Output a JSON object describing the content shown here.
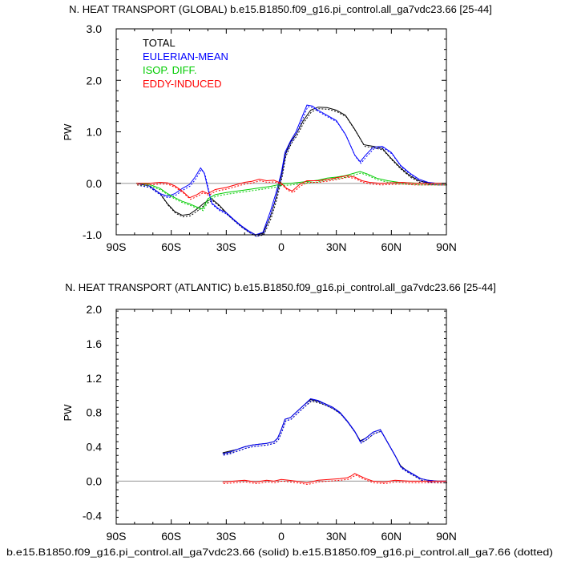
{
  "chart_data": [
    {
      "type": "line",
      "title": "N. HEAT TRANSPORT (GLOBAL) b.e15.B1850.f09_g16.pi_control.all_ga7vdc23.66 [25-44]",
      "ylabel": "PW",
      "xlabel": "",
      "xlim": [
        -90,
        90
      ],
      "ylim": [
        -1.0,
        3.0
      ],
      "xticks": [
        -90,
        -60,
        -30,
        0,
        30,
        60,
        90
      ],
      "xtick_labels": [
        "90S",
        "60S",
        "30S",
        "0",
        "30N",
        "60N",
        "90N"
      ],
      "yticks": [
        -1.0,
        0.0,
        1.0,
        2.0,
        3.0
      ],
      "ytick_labels": [
        "-1.0",
        "0.0",
        "1.0",
        "2.0",
        "3.0"
      ],
      "zero_line": true,
      "legend_placement": "top-left",
      "line_styles": {
        "solid": "b.e15.B1850.f09_g16.pi_control.all_ga7vdc23.66",
        "dotted": "b.e15.B1850.f09_g16.pi_control.all_ga7.66"
      },
      "series": [
        {
          "name": "TOTAL",
          "color": "#000000",
          "x": [
            -79,
            -72,
            -66,
            -62,
            -58,
            -54,
            -50,
            -46,
            -42,
            -38,
            -34,
            -30,
            -26,
            -22,
            -18,
            -14,
            -10,
            -6,
            -3,
            0,
            2,
            5,
            8,
            12,
            16,
            20,
            25,
            30,
            35,
            40,
            45,
            50,
            55,
            60,
            65,
            70,
            75,
            80,
            85,
            90
          ],
          "y": [
            0.0,
            -0.05,
            -0.2,
            -0.4,
            -0.55,
            -0.62,
            -0.6,
            -0.5,
            -0.38,
            -0.3,
            -0.42,
            -0.57,
            -0.7,
            -0.82,
            -0.92,
            -1.0,
            -0.97,
            -0.65,
            -0.3,
            0.15,
            0.55,
            0.8,
            0.95,
            1.22,
            1.42,
            1.48,
            1.47,
            1.42,
            1.32,
            1.05,
            0.75,
            0.72,
            0.68,
            0.48,
            0.3,
            0.15,
            0.05,
            0.01,
            0.0,
            0.0
          ]
        },
        {
          "name": "EULERIAN-MEAN",
          "color": "#0000ff",
          "x": [
            -79,
            -72,
            -66,
            -62,
            -58,
            -54,
            -50,
            -47,
            -44,
            -42,
            -40,
            -38,
            -34,
            -30,
            -26,
            -22,
            -18,
            -14,
            -10,
            -6,
            -3,
            0,
            2,
            5,
            8,
            12,
            14,
            17,
            20,
            25,
            30,
            35,
            40,
            43,
            46,
            50,
            55,
            60,
            65,
            70,
            75,
            80,
            85,
            90
          ],
          "y": [
            0.0,
            -0.05,
            -0.2,
            -0.25,
            -0.2,
            -0.1,
            -0.02,
            0.12,
            0.3,
            0.2,
            -0.1,
            -0.38,
            -0.5,
            -0.57,
            -0.7,
            -0.82,
            -0.92,
            -1.0,
            -0.95,
            -0.55,
            -0.2,
            0.2,
            0.6,
            0.82,
            1.0,
            1.35,
            1.52,
            1.5,
            1.42,
            1.32,
            1.22,
            0.95,
            0.55,
            0.42,
            0.55,
            0.7,
            0.72,
            0.6,
            0.35,
            0.2,
            0.08,
            0.02,
            0.0,
            0.0
          ]
        },
        {
          "name": "ISOP. DIFF.",
          "color": "#00cc00",
          "x": [
            -79,
            -72,
            -66,
            -62,
            -58,
            -54,
            -50,
            -46,
            -43,
            -40,
            -36,
            -30,
            -24,
            -18,
            -12,
            -6,
            -2,
            0,
            5,
            10,
            15,
            20,
            25,
            30,
            35,
            40,
            43,
            47,
            52,
            58,
            64,
            70,
            76,
            82,
            90
          ],
          "y": [
            0.0,
            -0.02,
            -0.1,
            -0.2,
            -0.28,
            -0.35,
            -0.4,
            -0.46,
            -0.5,
            -0.3,
            -0.22,
            -0.18,
            -0.15,
            -0.12,
            -0.09,
            -0.06,
            -0.03,
            -0.01,
            0.0,
            0.02,
            0.04,
            0.06,
            0.1,
            0.12,
            0.15,
            0.2,
            0.23,
            0.18,
            0.1,
            0.05,
            0.02,
            0.01,
            0.0,
            0.0,
            0.0
          ]
        },
        {
          "name": "EDDY-INDUCED",
          "color": "#ff0000",
          "x": [
            -79,
            -72,
            -66,
            -62,
            -58,
            -54,
            -50,
            -46,
            -43,
            -40,
            -36,
            -30,
            -24,
            -20,
            -16,
            -12,
            -8,
            -4,
            0,
            3,
            6,
            10,
            14,
            20,
            26,
            32,
            36,
            40,
            44,
            48,
            54,
            60,
            66,
            72,
            80,
            90
          ],
          "y": [
            0.0,
            0.0,
            0.02,
            0.01,
            -0.05,
            -0.15,
            -0.28,
            -0.22,
            -0.15,
            -0.2,
            -0.12,
            -0.08,
            -0.02,
            0.02,
            0.04,
            0.08,
            0.05,
            0.06,
            0.0,
            -0.1,
            -0.15,
            -0.02,
            0.05,
            0.05,
            0.08,
            0.12,
            0.15,
            0.12,
            0.05,
            0.02,
            0.0,
            0.01,
            0.02,
            0.0,
            0.0,
            0.0
          ]
        }
      ]
    },
    {
      "type": "line",
      "title": "N. HEAT TRANSPORT (ATLANTIC) b.e15.B1850.f09_g16.pi_control.all_ga7vdc23.66 [25-44]",
      "ylabel": "PW",
      "xlabel": "b.e15.B1850.f09_g16.pi_control.all_ga7vdc23.66 (solid) b.e15.B1850.f09_g16.pi_control.all_ga7.66 (dotted)",
      "xlim": [
        -90,
        90
      ],
      "ylim": [
        -0.5,
        2.0
      ],
      "xticks": [
        -90,
        -60,
        -30,
        0,
        30,
        60,
        90
      ],
      "xtick_labels": [
        "90S",
        "60S",
        "30S",
        "0",
        "30N",
        "60N",
        "90N"
      ],
      "yticks": [
        -0.4,
        0.0,
        0.4,
        0.8,
        1.2,
        1.6,
        2.0
      ],
      "ytick_labels": [
        "-0.4",
        "0.0",
        "0.4",
        "0.8",
        "1.2",
        "1.6",
        "2.0"
      ],
      "zero_line": true,
      "series": [
        {
          "color": "#000000",
          "x": [
            -32,
            -28,
            -24,
            -20,
            -16,
            -12,
            -8,
            -4,
            -2,
            0,
            2,
            5,
            8,
            12,
            16,
            20,
            24,
            28,
            32,
            36,
            40,
            43,
            46,
            50,
            54,
            58,
            62,
            65,
            68,
            72,
            76,
            80,
            85,
            90
          ],
          "y": [
            0.33,
            0.35,
            0.37,
            0.4,
            0.42,
            0.43,
            0.44,
            0.46,
            0.5,
            0.6,
            0.72,
            0.74,
            0.8,
            0.88,
            0.95,
            0.93,
            0.9,
            0.86,
            0.8,
            0.7,
            0.58,
            0.47,
            0.5,
            0.57,
            0.6,
            0.45,
            0.3,
            0.18,
            0.13,
            0.08,
            0.03,
            0.01,
            0.0,
            0.0
          ]
        },
        {
          "color": "#0000ff",
          "x": [
            -32,
            -28,
            -24,
            -20,
            -16,
            -12,
            -8,
            -4,
            -2,
            0,
            2,
            5,
            8,
            12,
            16,
            20,
            24,
            28,
            32,
            36,
            40,
            43,
            46,
            50,
            54,
            58,
            62,
            65,
            68,
            72,
            76,
            80,
            85,
            90
          ],
          "y": [
            0.32,
            0.34,
            0.37,
            0.4,
            0.42,
            0.43,
            0.44,
            0.46,
            0.5,
            0.6,
            0.72,
            0.74,
            0.8,
            0.88,
            0.96,
            0.94,
            0.9,
            0.86,
            0.8,
            0.7,
            0.58,
            0.46,
            0.5,
            0.57,
            0.6,
            0.45,
            0.3,
            0.17,
            0.13,
            0.08,
            0.03,
            0.01,
            0.0,
            0.0
          ]
        },
        {
          "color": "#ff0000",
          "x": [
            -32,
            -26,
            -20,
            -14,
            -8,
            -4,
            0,
            4,
            8,
            14,
            20,
            26,
            32,
            36,
            38,
            40,
            42,
            46,
            50,
            56,
            62,
            70,
            80,
            90
          ],
          "y": [
            -0.01,
            0.0,
            0.01,
            -0.01,
            0.01,
            0.0,
            0.02,
            0.01,
            0.0,
            -0.02,
            0.01,
            0.02,
            0.03,
            0.04,
            0.06,
            0.09,
            0.07,
            0.03,
            0.0,
            -0.01,
            0.01,
            0.0,
            0.0,
            0.0
          ]
        }
      ]
    }
  ]
}
